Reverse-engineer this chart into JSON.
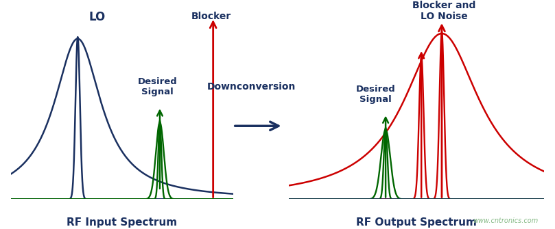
{
  "background_color": "#ffffff",
  "dark_blue": "#1a3060",
  "red": "#cc0000",
  "green": "#006600",
  "arrow_blue": "#1a3060",
  "left_panel_xlabel": "RF Input Spectrum",
  "right_panel_xlabel": "RF Output Spectrum",
  "downconversion_label": "Downconversion",
  "lo_label": "LO",
  "blocker_left_label": "Blocker",
  "desired_left_label": "Desired\nSignal",
  "blocker_right_label": "Blocker and\nLO Noise",
  "desired_right_label": "Desired\nSignal",
  "watermark": "www.cntronics.com",
  "font_size_labels": 10,
  "font_size_xlabel": 11,
  "font_size_downconv": 10
}
